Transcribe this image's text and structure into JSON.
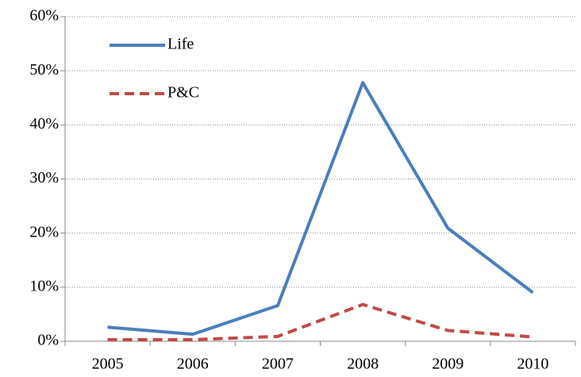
{
  "chart_data": {
    "type": "line",
    "categories": [
      "2005",
      "2006",
      "2007",
      "2008",
      "2009",
      "2010"
    ],
    "series": [
      {
        "name": "Life",
        "color": "#4a7ebb",
        "dash": false,
        "values": [
          2.6,
          1.3,
          6.6,
          47.8,
          20.9,
          9.0
        ]
      },
      {
        "name": "P&C",
        "color": "#be4b48",
        "dash": true,
        "values": [
          0.3,
          0.3,
          0.9,
          6.8,
          2.0,
          0.8
        ]
      }
    ],
    "ylim": [
      0,
      60
    ],
    "yticks": [
      {
        "value": 0,
        "label": "0%"
      },
      {
        "value": 10,
        "label": "10%"
      },
      {
        "value": 20,
        "label": "20%"
      },
      {
        "value": 30,
        "label": "30%"
      },
      {
        "value": 40,
        "label": "40%"
      },
      {
        "value": 50,
        "label": "50%"
      },
      {
        "value": 60,
        "label": "60%"
      }
    ],
    "grid": true,
    "legend": "upper left"
  }
}
